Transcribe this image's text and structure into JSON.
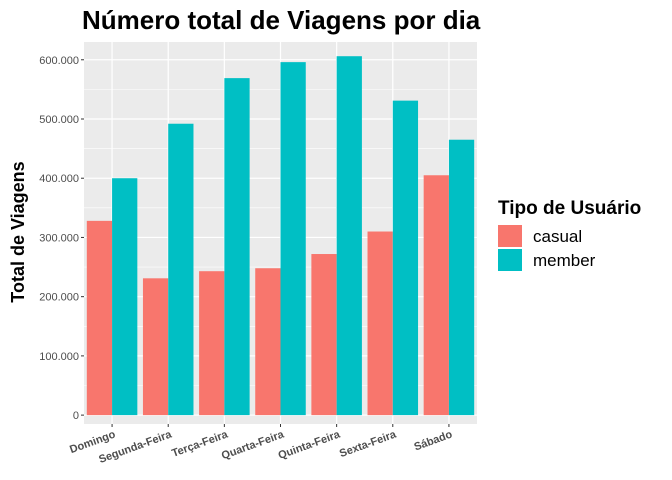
{
  "chart_data": {
    "type": "bar",
    "title": "Número total de Viagens por dia",
    "xlabel": "",
    "ylabel": "Total de Viagens",
    "categories": [
      "Domingo",
      "Segunda-Feira",
      "Terça-Feira",
      "Quarta-Feira",
      "Quinta-Feira",
      "Sexta-Feira",
      "Sábado"
    ],
    "series": [
      {
        "name": "casual",
        "color": "#F8766D",
        "values": [
          328000,
          231000,
          243000,
          248000,
          272000,
          310000,
          405000
        ]
      },
      {
        "name": "member",
        "color": "#00BFC4",
        "values": [
          400000,
          492000,
          569000,
          596000,
          606000,
          531000,
          465000
        ]
      }
    ],
    "ylim": [
      -15000,
      630000
    ],
    "yticks": [
      0,
      100000,
      200000,
      300000,
      400000,
      500000,
      600000
    ],
    "ytick_labels": [
      "0",
      "100.000",
      "200.000",
      "300.000",
      "400.000",
      "500.000",
      "600.000"
    ],
    "legend": {
      "title": "Tipo de Usuário",
      "position": "right"
    },
    "grid": true,
    "panel_background": "#EBEBEB"
  }
}
